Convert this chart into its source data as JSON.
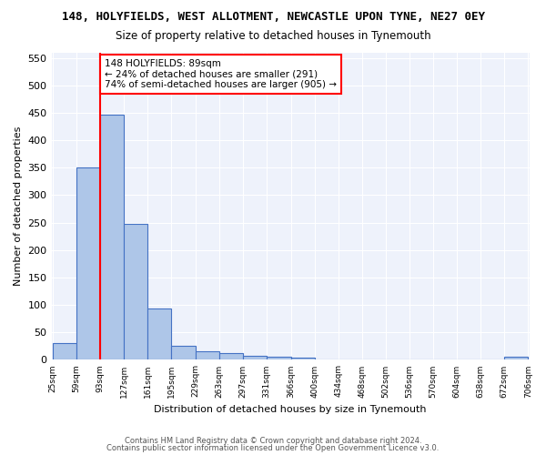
{
  "title": "148, HOLYFIELDS, WEST ALLOTMENT, NEWCASTLE UPON TYNE, NE27 0EY",
  "subtitle": "Size of property relative to detached houses in Tynemouth",
  "xlabel": "Distribution of detached houses by size in Tynemouth",
  "ylabel": "Number of detached properties",
  "bar_values": [
    30,
    350,
    447,
    247,
    93,
    25,
    15,
    12,
    8,
    5,
    4,
    0,
    0,
    0,
    0,
    0,
    0,
    0,
    0,
    5
  ],
  "bin_labels": [
    "25sqm",
    "59sqm",
    "93sqm",
    "127sqm",
    "161sqm",
    "195sqm",
    "229sqm",
    "263sqm",
    "297sqm",
    "331sqm",
    "366sqm",
    "400sqm",
    "434sqm",
    "468sqm",
    "502sqm",
    "536sqm",
    "570sqm",
    "604sqm",
    "638sqm",
    "672sqm",
    "706sqm"
  ],
  "bin_edges": [
    25,
    59,
    93,
    127,
    161,
    195,
    229,
    263,
    297,
    331,
    366,
    400,
    434,
    468,
    502,
    536,
    570,
    604,
    638,
    672,
    706
  ],
  "bar_color": "#aec6e8",
  "bar_edge_color": "#4472c4",
  "property_line_x": 93,
  "property_size": 89,
  "annotation_text": "148 HOLYFIELDS: 89sqm\n← 24% of detached houses are smaller (291)\n74% of semi-detached houses are larger (905) →",
  "annotation_box_color": "white",
  "annotation_box_edge_color": "red",
  "vline_color": "red",
  "ylim": [
    0,
    560
  ],
  "yticks": [
    0,
    50,
    100,
    150,
    200,
    250,
    300,
    350,
    400,
    450,
    500,
    550
  ],
  "background_color": "#eef2fb",
  "grid_color": "white",
  "footer_line1": "Contains HM Land Registry data © Crown copyright and database right 2024.",
  "footer_line2": "Contains public sector information licensed under the Open Government Licence v3.0."
}
